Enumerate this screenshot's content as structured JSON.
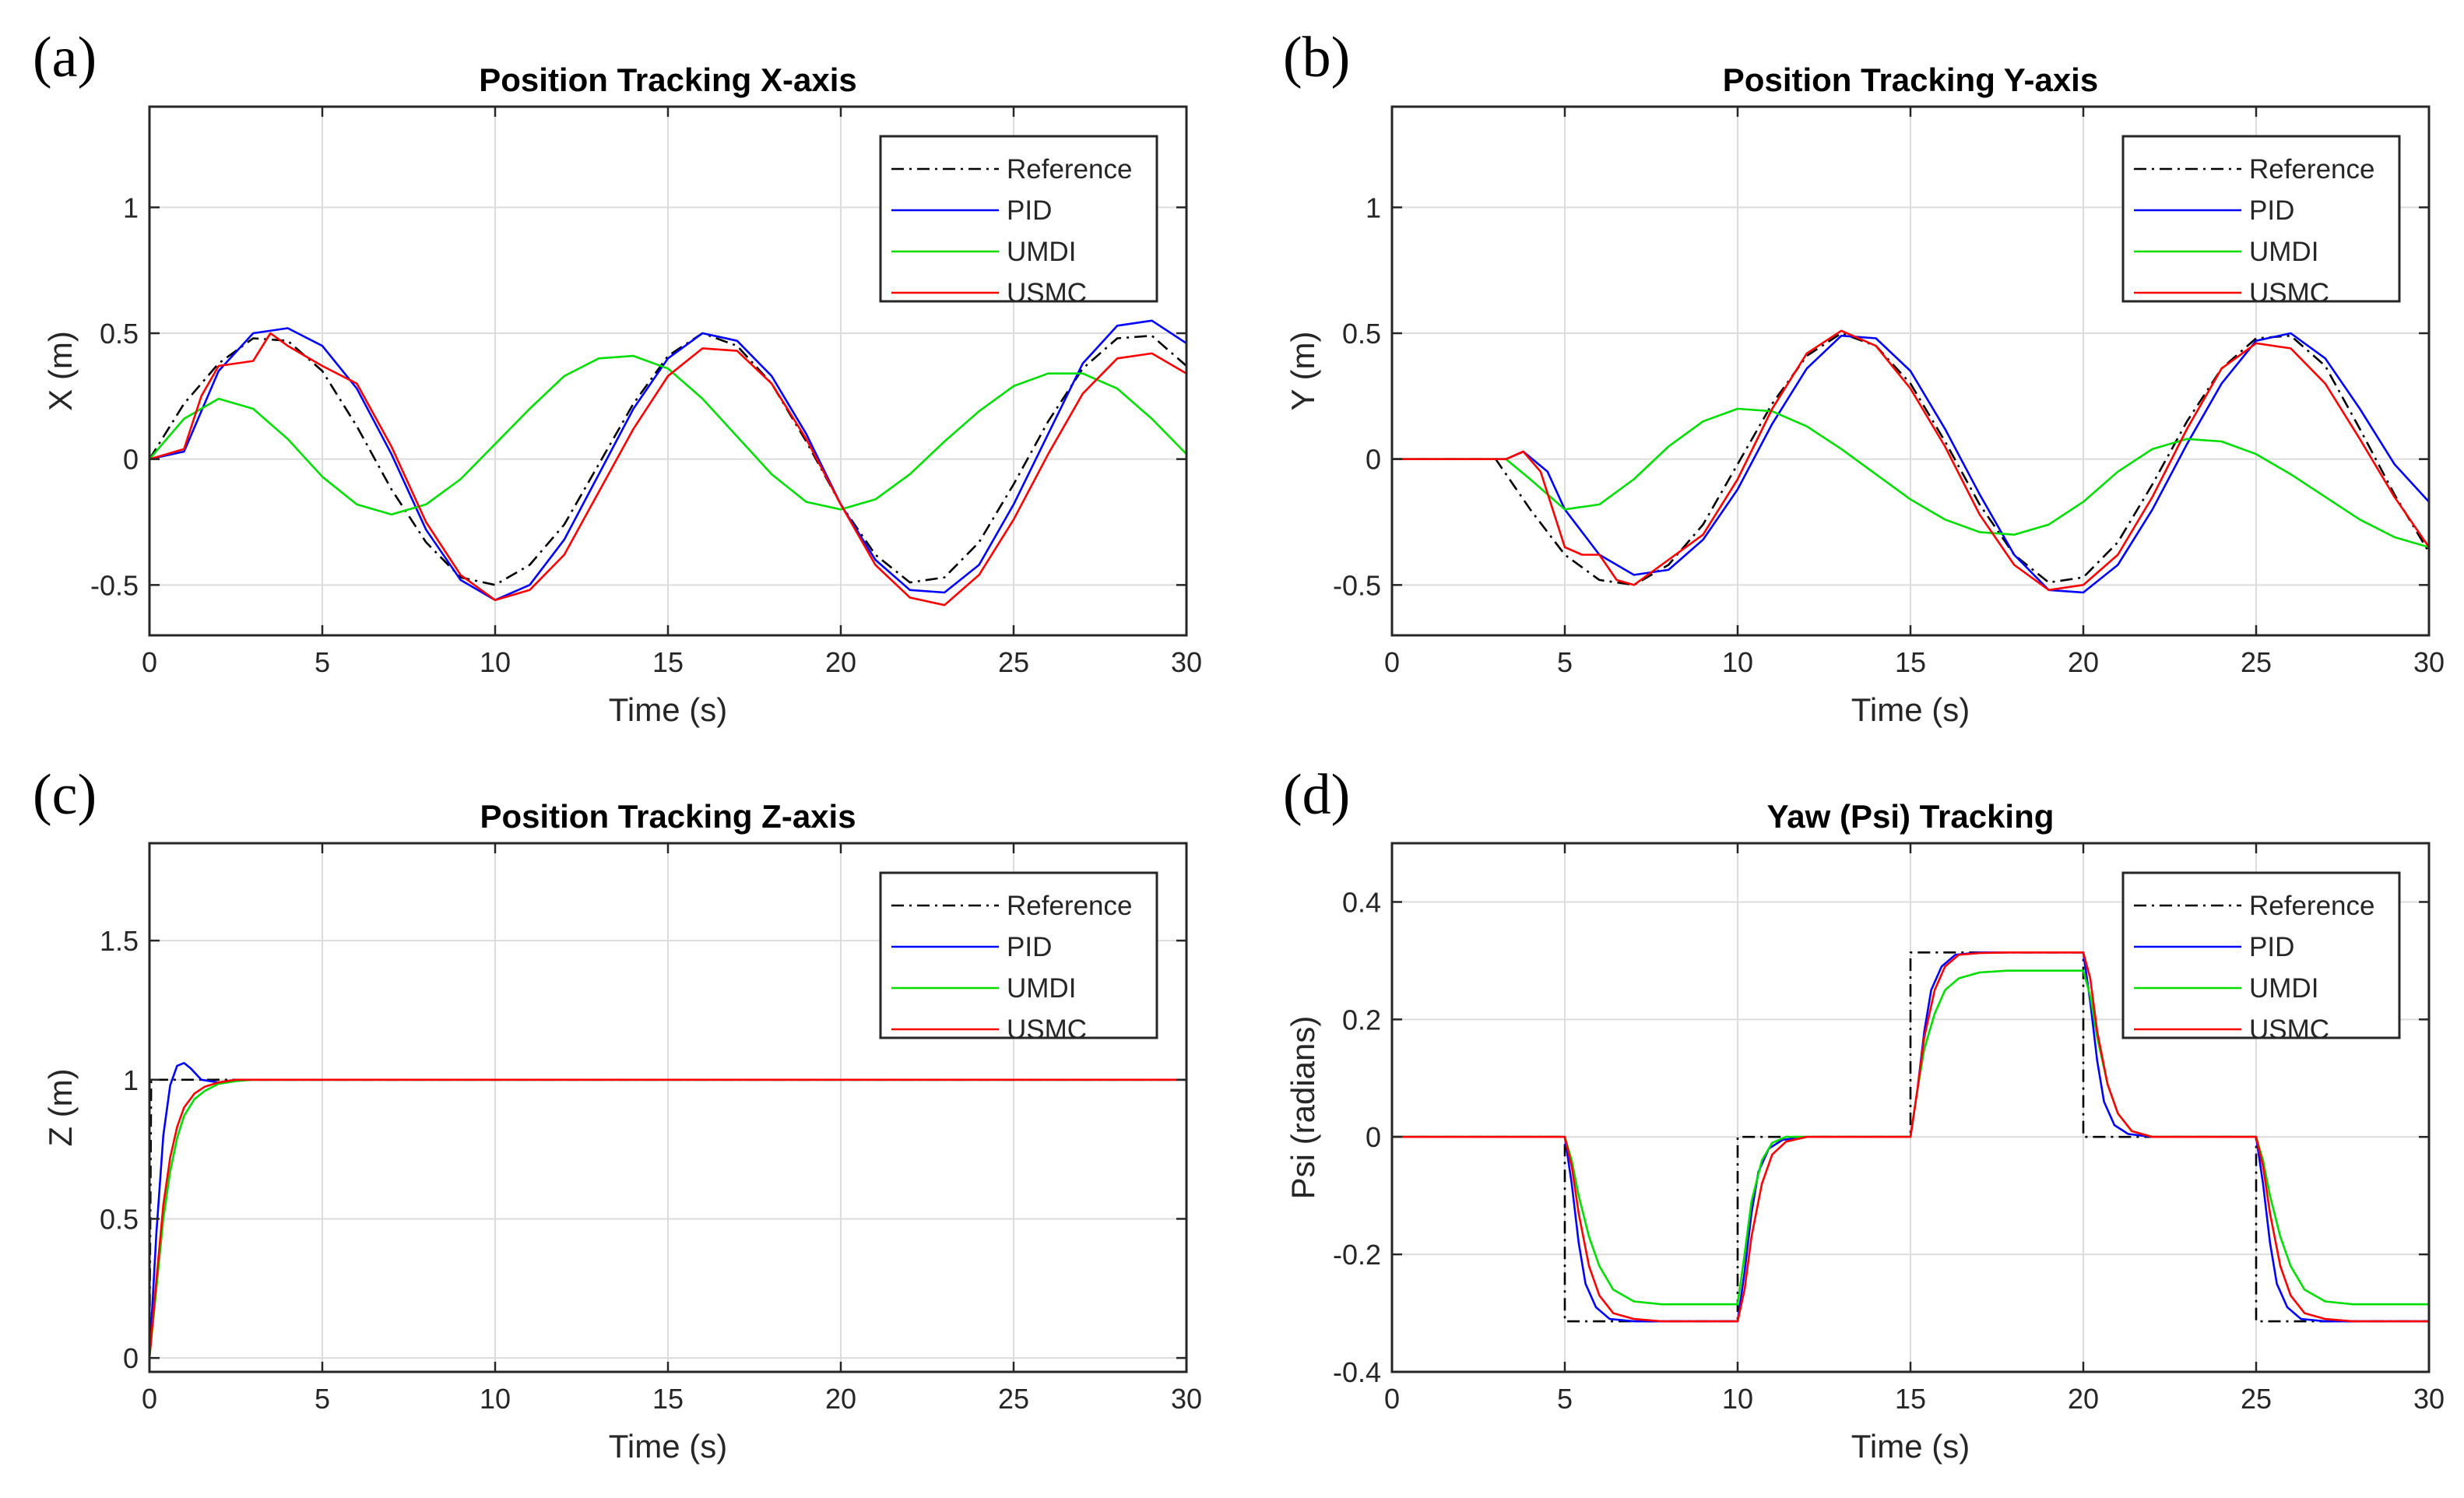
{
  "figure": {
    "colors": {
      "Reference": "#000000",
      "PID": "#0000ff",
      "UMDI": "#00dd00",
      "USMC": "#ff0000"
    }
  },
  "chart_data": [
    {
      "type": "line",
      "panel_label": "(a)",
      "title": "Position Tracking X-axis",
      "xlabel": "Time (s)",
      "ylabel": "X (m)",
      "xlim": [
        0,
        30
      ],
      "ylim": [
        -0.7,
        1.4
      ],
      "xticks": [
        "0",
        "5",
        "10",
        "15",
        "20",
        "25",
        "30"
      ],
      "yticks": [
        "-0.5",
        "0",
        "0.5",
        "1"
      ],
      "ytick_values": [
        -0.5,
        0,
        0.5,
        1
      ],
      "grid": true,
      "legend_position": "top-right",
      "legend": [
        "Reference",
        "PID",
        "UMDI",
        "USMC"
      ],
      "series": [
        {
          "name": "Reference",
          "style": "dashdot",
          "x": [
            0,
            1,
            2,
            3,
            4,
            5,
            6,
            7,
            8,
            9,
            10,
            11,
            12,
            13,
            14,
            15,
            16,
            17,
            18,
            19,
            20,
            21,
            22,
            23,
            24,
            25,
            26,
            27,
            28,
            29,
            30
          ],
          "y": [
            0,
            0.22,
            0.38,
            0.48,
            0.47,
            0.35,
            0.13,
            -0.12,
            -0.33,
            -0.47,
            -0.5,
            -0.42,
            -0.26,
            -0.02,
            0.22,
            0.41,
            0.5,
            0.45,
            0.3,
            0.07,
            -0.18,
            -0.38,
            -0.49,
            -0.47,
            -0.33,
            -0.1,
            0.15,
            0.36,
            0.48,
            0.49,
            0.37
          ]
        },
        {
          "name": "PID",
          "style": "solid",
          "x": [
            0,
            1,
            2,
            3,
            4,
            5,
            6,
            7,
            8,
            9,
            10,
            11,
            12,
            13,
            14,
            15,
            16,
            17,
            18,
            19,
            20,
            21,
            22,
            23,
            24,
            25,
            26,
            27,
            28,
            29,
            30
          ],
          "y": [
            0,
            0.03,
            0.35,
            0.5,
            0.52,
            0.45,
            0.28,
            0.02,
            -0.28,
            -0.48,
            -0.56,
            -0.5,
            -0.32,
            -0.06,
            0.2,
            0.4,
            0.5,
            0.47,
            0.33,
            0.1,
            -0.18,
            -0.4,
            -0.52,
            -0.53,
            -0.42,
            -0.18,
            0.1,
            0.38,
            0.53,
            0.55,
            0.46
          ]
        },
        {
          "name": "UMDI",
          "style": "solid",
          "x": [
            0,
            1,
            2,
            3,
            4,
            5,
            6,
            7,
            8,
            9,
            10,
            11,
            12,
            13,
            14,
            15,
            16,
            17,
            18,
            19,
            20,
            21,
            22,
            23,
            24,
            25,
            26,
            27,
            28,
            29,
            30
          ],
          "y": [
            0,
            0.16,
            0.24,
            0.2,
            0.08,
            -0.07,
            -0.18,
            -0.22,
            -0.18,
            -0.08,
            0.06,
            0.2,
            0.33,
            0.4,
            0.41,
            0.36,
            0.24,
            0.09,
            -0.06,
            -0.17,
            -0.2,
            -0.16,
            -0.06,
            0.07,
            0.19,
            0.29,
            0.34,
            0.34,
            0.28,
            0.16,
            0.02
          ]
        },
        {
          "name": "USMC",
          "style": "solid",
          "x": [
            0,
            1,
            1.5,
            2,
            3,
            3.5,
            4,
            5,
            6,
            7,
            8,
            9,
            10,
            11,
            12,
            13,
            14,
            15,
            16,
            17,
            18,
            19,
            20,
            21,
            22,
            23,
            24,
            25,
            26,
            27,
            28,
            29,
            30
          ],
          "y": [
            0,
            0.04,
            0.25,
            0.37,
            0.39,
            0.5,
            0.45,
            0.37,
            0.3,
            0.05,
            -0.25,
            -0.46,
            -0.56,
            -0.52,
            -0.38,
            -0.13,
            0.12,
            0.33,
            0.44,
            0.43,
            0.3,
            0.08,
            -0.18,
            -0.42,
            -0.55,
            -0.58,
            -0.46,
            -0.24,
            0.02,
            0.26,
            0.4,
            0.42,
            0.34
          ]
        }
      ]
    },
    {
      "type": "line",
      "panel_label": "(b)",
      "title": "Position Tracking Y-axis",
      "xlabel": "Time (s)",
      "ylabel": "Y (m)",
      "xlim": [
        0,
        30
      ],
      "ylim": [
        -0.7,
        1.4
      ],
      "xticks": [
        "0",
        "5",
        "10",
        "15",
        "20",
        "25",
        "30"
      ],
      "yticks": [
        "-0.5",
        "0",
        "0.5",
        "1"
      ],
      "ytick_values": [
        -0.5,
        0,
        0.5,
        1
      ],
      "grid": true,
      "legend_position": "top-right",
      "legend": [
        "Reference",
        "PID",
        "UMDI",
        "USMC"
      ],
      "series": [
        {
          "name": "Reference",
          "style": "dashdot",
          "x": [
            0,
            3,
            4,
            5,
            6,
            7,
            8,
            9,
            10,
            11,
            12,
            13,
            14,
            15,
            16,
            17,
            18,
            19,
            20,
            21,
            22,
            23,
            24,
            25,
            26,
            27,
            28,
            29,
            30
          ],
          "y": [
            0,
            0,
            -0.2,
            -0.38,
            -0.48,
            -0.5,
            -0.42,
            -0.26,
            -0.02,
            0.22,
            0.41,
            0.5,
            0.45,
            0.3,
            0.07,
            -0.18,
            -0.38,
            -0.49,
            -0.47,
            -0.33,
            -0.1,
            0.15,
            0.36,
            0.48,
            0.49,
            0.37,
            0.12,
            -0.14,
            -0.37
          ]
        },
        {
          "name": "PID",
          "style": "solid",
          "x": [
            0,
            3.3,
            3.8,
            4.5,
            5,
            6,
            7,
            8,
            9,
            10,
            11,
            12,
            13,
            14,
            15,
            16,
            17,
            18,
            19,
            20,
            21,
            22,
            23,
            24,
            25,
            26,
            27,
            28,
            29,
            30
          ],
          "y": [
            0,
            0,
            0.03,
            -0.05,
            -0.2,
            -0.38,
            -0.46,
            -0.44,
            -0.32,
            -0.12,
            0.14,
            0.36,
            0.49,
            0.48,
            0.35,
            0.12,
            -0.14,
            -0.38,
            -0.52,
            -0.53,
            -0.42,
            -0.2,
            0.06,
            0.3,
            0.47,
            0.5,
            0.4,
            0.2,
            -0.02,
            -0.17
          ]
        },
        {
          "name": "UMDI",
          "style": "solid",
          "x": [
            0,
            3.3,
            4,
            5,
            6,
            7,
            8,
            9,
            10,
            11,
            12,
            13,
            14,
            15,
            16,
            17,
            18,
            19,
            20,
            21,
            22,
            23,
            24,
            25,
            26,
            27,
            28,
            29,
            30
          ],
          "y": [
            0,
            0,
            -0.08,
            -0.2,
            -0.18,
            -0.08,
            0.05,
            0.15,
            0.2,
            0.19,
            0.13,
            0.04,
            -0.06,
            -0.16,
            -0.24,
            -0.29,
            -0.3,
            -0.26,
            -0.17,
            -0.05,
            0.04,
            0.08,
            0.07,
            0.02,
            -0.06,
            -0.15,
            -0.24,
            -0.31,
            -0.35
          ]
        },
        {
          "name": "USMC",
          "style": "solid",
          "x": [
            0,
            3.3,
            3.8,
            4.3,
            5,
            5.5,
            6,
            6.5,
            7,
            8,
            9,
            10,
            11,
            12,
            13,
            14,
            15,
            16,
            17,
            18,
            19,
            20,
            21,
            22,
            23,
            24,
            25,
            26,
            27,
            28,
            29,
            30
          ],
          "y": [
            0,
            0,
            0.03,
            -0.05,
            -0.35,
            -0.38,
            -0.38,
            -0.48,
            -0.5,
            -0.4,
            -0.3,
            -0.08,
            0.2,
            0.42,
            0.51,
            0.45,
            0.28,
            0.05,
            -0.22,
            -0.42,
            -0.52,
            -0.5,
            -0.38,
            -0.15,
            0.12,
            0.36,
            0.46,
            0.44,
            0.3,
            0.08,
            -0.15,
            -0.35
          ]
        }
      ]
    },
    {
      "type": "line",
      "panel_label": "(c)",
      "title": "Position Tracking Z-axis",
      "xlabel": "Time (s)",
      "ylabel": "Z (m)",
      "xlim": [
        0,
        30
      ],
      "ylim": [
        -0.05,
        1.85
      ],
      "xticks": [
        "0",
        "5",
        "10",
        "15",
        "20",
        "25",
        "30"
      ],
      "yticks": [
        "0",
        "0.5",
        "1",
        "1.5"
      ],
      "ytick_values": [
        0,
        0.5,
        1,
        1.5
      ],
      "grid": true,
      "legend_position": "top-right",
      "legend": [
        "Reference",
        "PID",
        "UMDI",
        "USMC"
      ],
      "series": [
        {
          "name": "Reference",
          "style": "dashdot",
          "x": [
            0,
            0.05,
            30
          ],
          "y": [
            0,
            1,
            1
          ]
        },
        {
          "name": "PID",
          "style": "solid",
          "x": [
            0,
            0.2,
            0.4,
            0.6,
            0.8,
            1.0,
            1.2,
            1.5,
            2.0,
            2.5,
            3,
            30
          ],
          "y": [
            0,
            0.45,
            0.8,
            0.98,
            1.05,
            1.06,
            1.04,
            1.0,
            0.99,
            1.0,
            1.0,
            1.0
          ]
        },
        {
          "name": "UMDI",
          "style": "solid",
          "x": [
            0,
            0.2,
            0.4,
            0.6,
            0.8,
            1.0,
            1.3,
            1.6,
            2.0,
            2.5,
            3,
            30
          ],
          "y": [
            0,
            0.25,
            0.5,
            0.67,
            0.79,
            0.87,
            0.93,
            0.96,
            0.985,
            0.995,
            1.0,
            1.0
          ]
        },
        {
          "name": "USMC",
          "style": "solid",
          "x": [
            0,
            0.2,
            0.4,
            0.6,
            0.8,
            1.0,
            1.3,
            1.6,
            2.0,
            2.5,
            3,
            30
          ],
          "y": [
            0,
            0.28,
            0.55,
            0.72,
            0.83,
            0.9,
            0.95,
            0.975,
            0.99,
            1.0,
            1.0,
            1.0
          ]
        }
      ]
    },
    {
      "type": "line",
      "panel_label": "(d)",
      "title": "Yaw (Psi) Tracking",
      "xlabel": "Time (s)",
      "ylabel": "Psi (radians)",
      "xlim": [
        0,
        30
      ],
      "ylim": [
        -0.4,
        0.5
      ],
      "xticks": [
        "0",
        "5",
        "10",
        "15",
        "20",
        "25",
        "30"
      ],
      "yticks": [
        "-0.4",
        "-0.2",
        "0",
        "0.2",
        "0.4"
      ],
      "ytick_values": [
        -0.4,
        -0.2,
        0,
        0.2,
        0.4
      ],
      "grid": true,
      "legend_position": "top-right",
      "legend": [
        "Reference",
        "PID",
        "UMDI",
        "USMC"
      ],
      "series": [
        {
          "name": "Reference",
          "style": "dashdot",
          "x": [
            0,
            5,
            5,
            10,
            10,
            15,
            15,
            20,
            20,
            25,
            25,
            30
          ],
          "y": [
            0,
            0,
            -0.314,
            -0.314,
            0,
            0,
            0.314,
            0.314,
            0,
            0,
            -0.314,
            -0.314
          ]
        },
        {
          "name": "PID",
          "style": "solid",
          "x": [
            0,
            5,
            5.2,
            5.4,
            5.6,
            5.9,
            6.3,
            7,
            10,
            10.2,
            10.4,
            10.6,
            10.9,
            11.3,
            12,
            15,
            15.2,
            15.4,
            15.6,
            15.9,
            16.3,
            17,
            20,
            20.2,
            20.4,
            20.6,
            20.9,
            21.3,
            22,
            25,
            25.2,
            25.4,
            25.6,
            25.9,
            26.3,
            27,
            30
          ],
          "y": [
            0,
            0,
            -0.08,
            -0.18,
            -0.25,
            -0.29,
            -0.31,
            -0.314,
            -0.314,
            -0.23,
            -0.13,
            -0.06,
            -0.02,
            -0.005,
            0,
            0,
            0.08,
            0.18,
            0.25,
            0.29,
            0.31,
            0.314,
            0.314,
            0.23,
            0.13,
            0.06,
            0.02,
            0.005,
            0,
            0,
            -0.08,
            -0.18,
            -0.25,
            -0.29,
            -0.31,
            -0.314,
            -0.314
          ]
        },
        {
          "name": "UMDI",
          "style": "solid",
          "x": [
            0,
            5,
            5.2,
            5.4,
            5.7,
            6.0,
            6.4,
            7,
            7.8,
            10,
            10.2,
            10.4,
            10.7,
            11.0,
            11.4,
            12,
            12.8,
            15,
            15.2,
            15.4,
            15.7,
            16.0,
            16.4,
            17,
            17.8,
            20,
            20.2,
            20.4,
            20.7,
            21.0,
            21.4,
            22,
            22.8,
            25,
            25.2,
            25.4,
            25.7,
            26.0,
            26.4,
            27,
            27.8,
            30
          ],
          "y": [
            0,
            0,
            -0.04,
            -0.1,
            -0.17,
            -0.22,
            -0.26,
            -0.28,
            -0.285,
            -0.285,
            -0.2,
            -0.11,
            -0.04,
            -0.01,
            0,
            0,
            0,
            0,
            0.08,
            0.15,
            0.21,
            0.25,
            0.27,
            0.28,
            0.283,
            0.283,
            0.24,
            0.17,
            0.09,
            0.04,
            0.01,
            0,
            0,
            0,
            -0.04,
            -0.1,
            -0.17,
            -0.22,
            -0.26,
            -0.28,
            -0.285,
            -0.285
          ]
        },
        {
          "name": "USMC",
          "style": "solid",
          "x": [
            0,
            5,
            5.2,
            5.4,
            5.7,
            6.0,
            6.4,
            7,
            7.8,
            10,
            10.2,
            10.4,
            10.7,
            11.0,
            11.4,
            12,
            12.8,
            15,
            15.2,
            15.4,
            15.7,
            16.0,
            16.4,
            17,
            17.8,
            20,
            20.2,
            20.4,
            20.7,
            21.0,
            21.4,
            22,
            22.8,
            25,
            25.2,
            25.4,
            25.7,
            26.0,
            26.4,
            27,
            27.8,
            30
          ],
          "y": [
            0,
            0,
            -0.05,
            -0.13,
            -0.22,
            -0.27,
            -0.3,
            -0.31,
            -0.314,
            -0.314,
            -0.26,
            -0.17,
            -0.08,
            -0.03,
            -0.008,
            0,
            0,
            0,
            0.08,
            0.17,
            0.25,
            0.29,
            0.31,
            0.313,
            0.314,
            0.314,
            0.27,
            0.18,
            0.09,
            0.04,
            0.01,
            0,
            0,
            0,
            -0.05,
            -0.13,
            -0.22,
            -0.27,
            -0.3,
            -0.31,
            -0.314,
            -0.314
          ]
        }
      ]
    }
  ]
}
